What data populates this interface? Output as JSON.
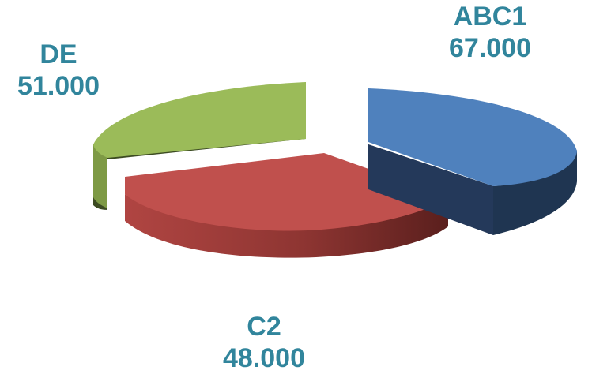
{
  "chart_data": {
    "type": "pie",
    "style": "3d-exploded",
    "categories": [
      "ABC1",
      "C2",
      "DE"
    ],
    "values": [
      "67.000",
      "48.000",
      "51.000"
    ],
    "colors": [
      "#4f81bd",
      "#c0504d",
      "#9bbb59"
    ],
    "legend": "none"
  }
}
